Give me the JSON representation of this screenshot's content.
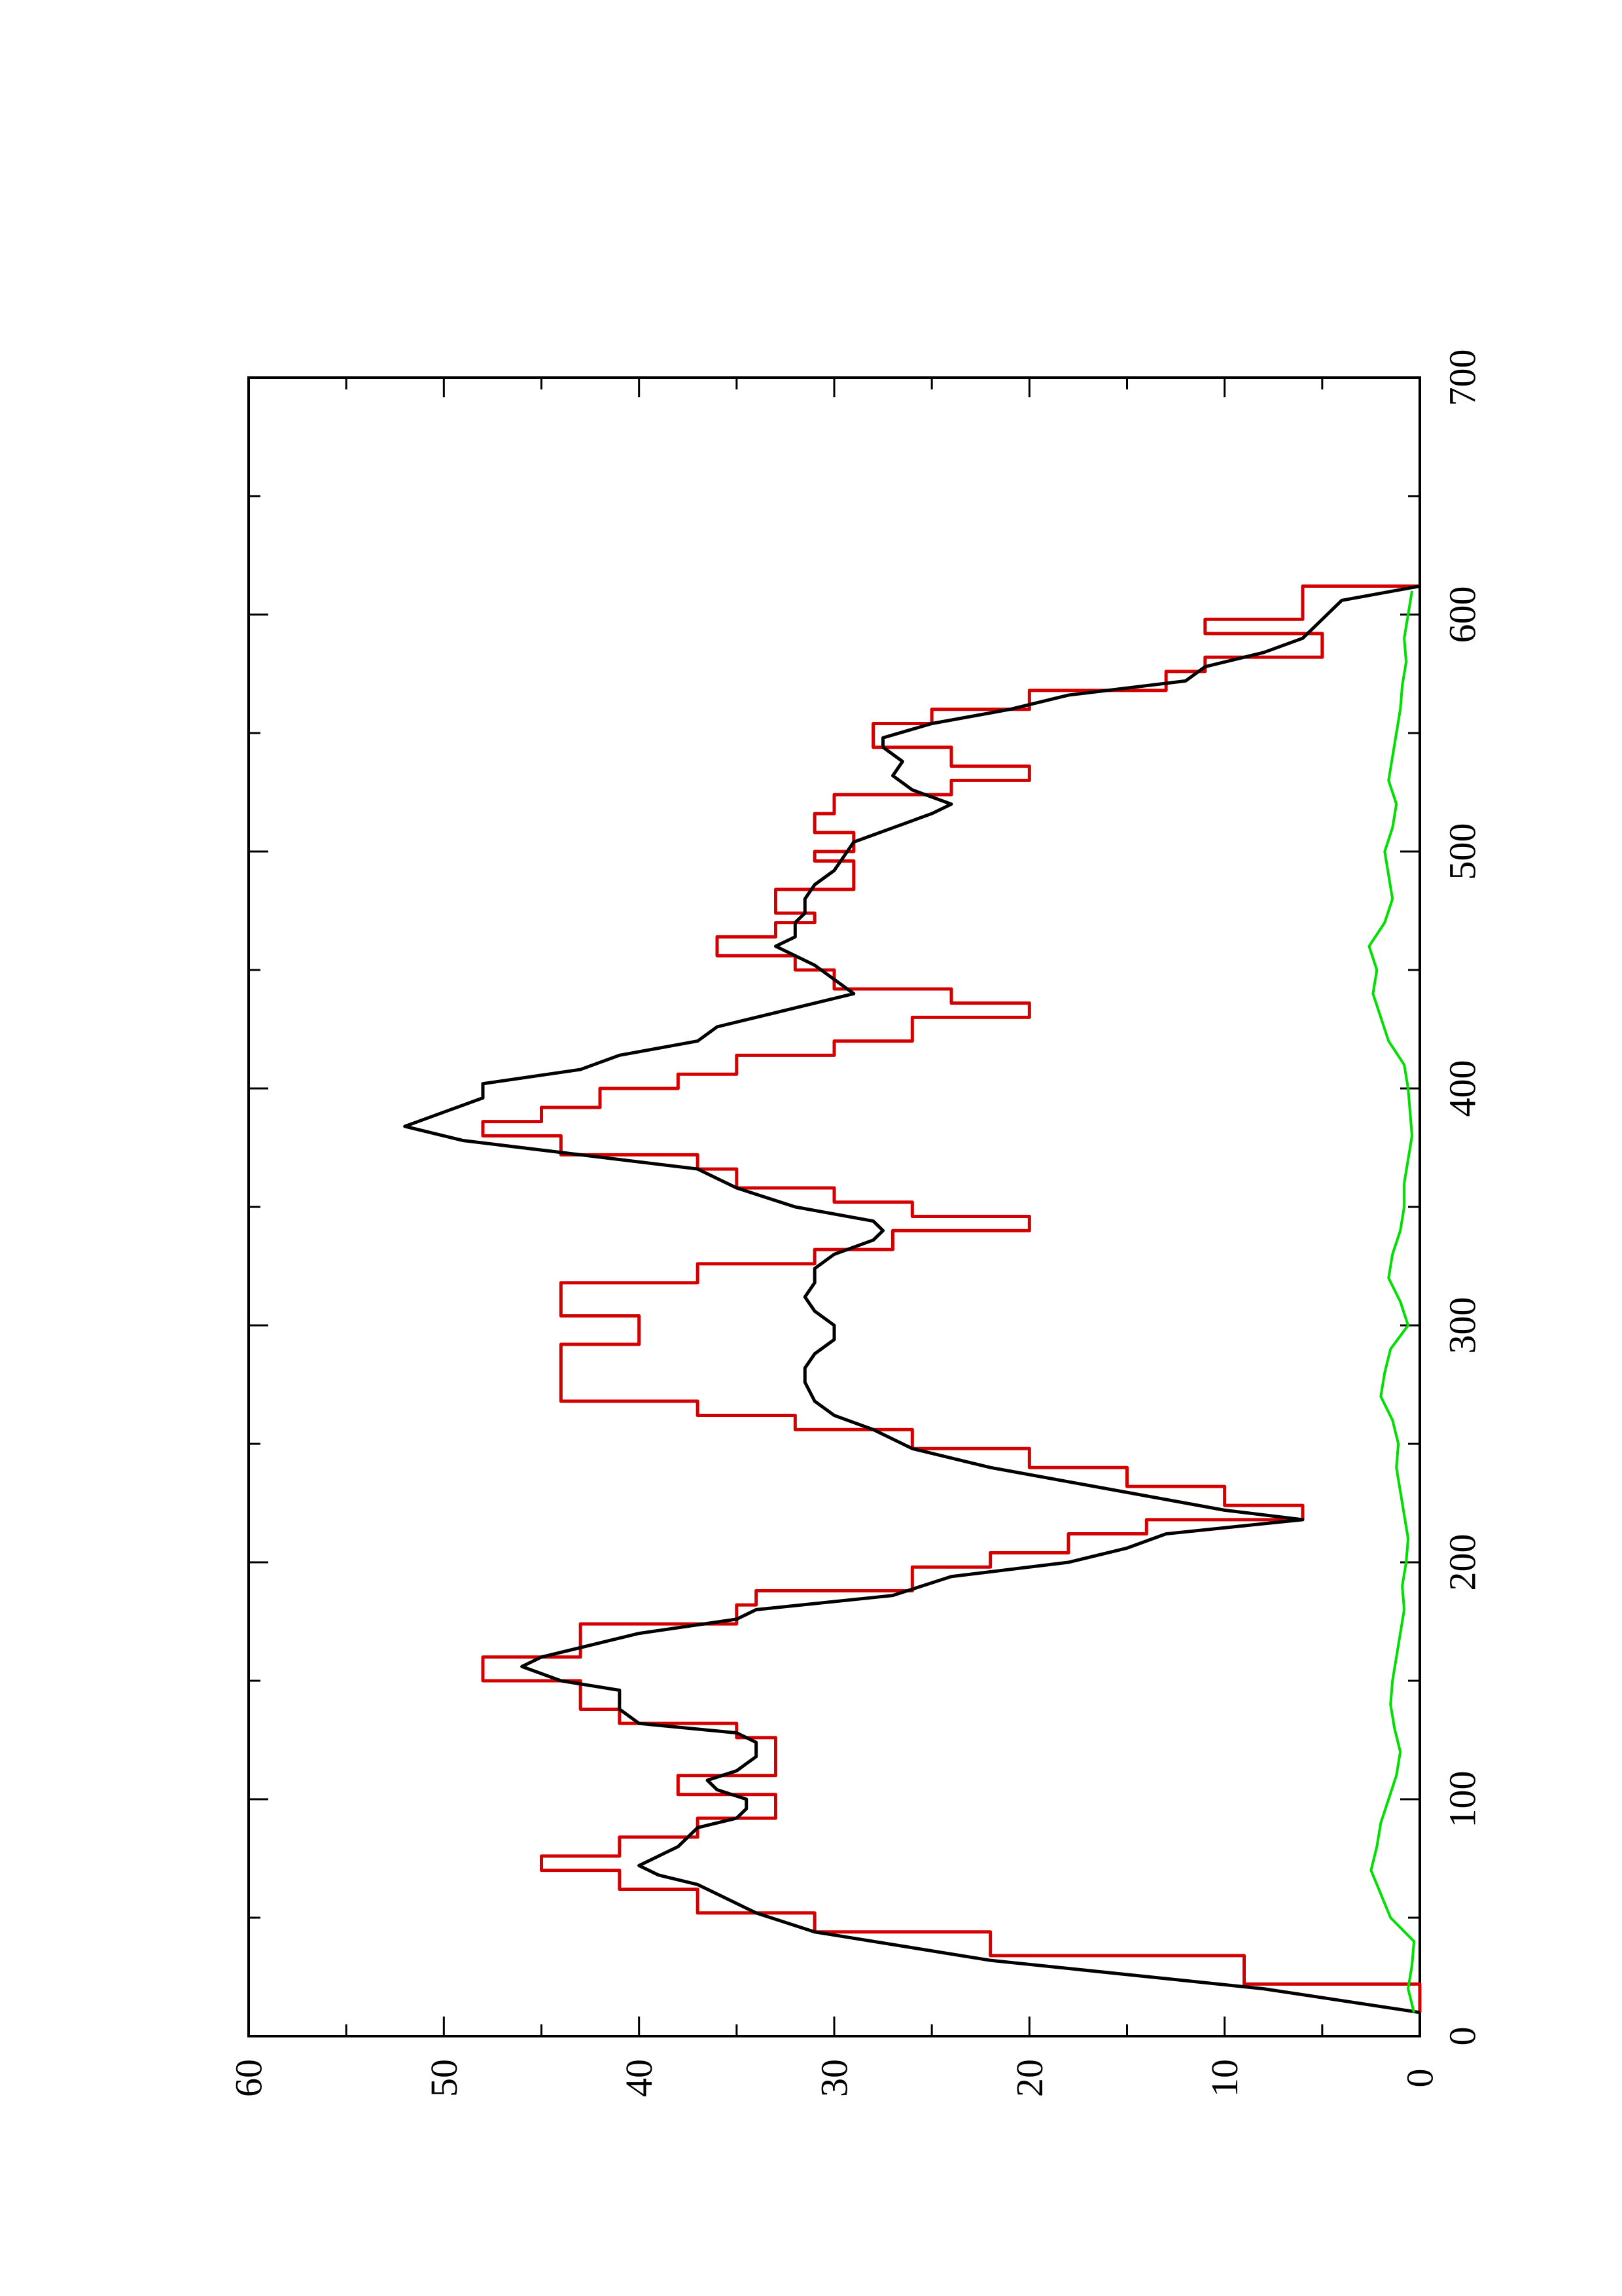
{
  "chart_data": {
    "type": "line",
    "orientation": "rotated-90-ccw",
    "title": "",
    "xlabel": "",
    "ylabel": "",
    "xlim": [
      0,
      700
    ],
    "ylim": [
      0,
      60
    ],
    "x_ticks": [
      "0",
      "100",
      "200",
      "300",
      "400",
      "500",
      "600",
      "700"
    ],
    "y_ticks": [
      "0",
      "10",
      "20",
      "30",
      "40",
      "50",
      "60"
    ],
    "grid": false,
    "legend": "none",
    "series": [
      {
        "color": "#d40000",
        "style": "step",
        "points": [
          [
            10,
            0
          ],
          [
            22,
            9
          ],
          [
            34,
            22
          ],
          [
            44,
            31
          ],
          [
            52,
            37
          ],
          [
            62,
            41
          ],
          [
            70,
            45
          ],
          [
            76,
            41
          ],
          [
            84,
            37
          ],
          [
            92,
            33
          ],
          [
            100,
            33
          ],
          [
            102,
            38
          ],
          [
            108,
            38
          ],
          [
            110,
            33
          ],
          [
            122,
            33
          ],
          [
            126,
            35
          ],
          [
            132,
            41
          ],
          [
            138,
            43
          ],
          [
            146,
            43
          ],
          [
            150,
            48
          ],
          [
            156,
            48
          ],
          [
            160,
            43
          ],
          [
            170,
            43
          ],
          [
            174,
            35
          ],
          [
            182,
            34
          ],
          [
            188,
            26
          ],
          [
            198,
            22
          ],
          [
            204,
            18
          ],
          [
            212,
            14
          ],
          [
            218,
            6
          ],
          [
            224,
            10
          ],
          [
            232,
            15
          ],
          [
            240,
            20
          ],
          [
            248,
            26
          ],
          [
            256,
            32
          ],
          [
            262,
            37
          ],
          [
            268,
            44
          ],
          [
            288,
            44
          ],
          [
            292,
            40
          ],
          [
            300,
            40
          ],
          [
            304,
            44
          ],
          [
            312,
            44
          ],
          [
            318,
            37
          ],
          [
            326,
            31
          ],
          [
            332,
            27
          ],
          [
            340,
            20
          ],
          [
            346,
            26
          ],
          [
            352,
            30
          ],
          [
            358,
            35
          ],
          [
            366,
            37
          ],
          [
            372,
            44
          ],
          [
            380,
            48
          ],
          [
            386,
            45
          ],
          [
            392,
            42
          ],
          [
            400,
            38
          ],
          [
            406,
            35
          ],
          [
            414,
            30
          ],
          [
            420,
            26
          ],
          [
            430,
            20
          ],
          [
            436,
            24
          ],
          [
            442,
            30
          ],
          [
            450,
            32
          ],
          [
            456,
            36
          ],
          [
            460,
            36
          ],
          [
            464,
            33
          ],
          [
            470,
            31
          ],
          [
            474,
            33
          ],
          [
            480,
            33
          ],
          [
            484,
            29
          ],
          [
            490,
            29
          ],
          [
            496,
            31
          ],
          [
            500,
            29
          ],
          [
            504,
            29
          ],
          [
            508,
            31
          ],
          [
            516,
            30
          ],
          [
            520,
            30
          ],
          [
            524,
            24
          ],
          [
            530,
            20
          ],
          [
            536,
            24
          ],
          [
            544,
            28
          ],
          [
            548,
            28
          ],
          [
            554,
            25
          ],
          [
            560,
            20
          ],
          [
            568,
            13
          ],
          [
            576,
            11
          ],
          [
            582,
            5
          ],
          [
            588,
            5
          ],
          [
            592,
            11
          ],
          [
            598,
            6
          ],
          [
            606,
            6
          ],
          [
            612,
            0
          ]
        ]
      },
      {
        "color": "#000000",
        "style": "line",
        "points": [
          [
            10,
            0
          ],
          [
            20,
            8
          ],
          [
            32,
            22
          ],
          [
            44,
            31
          ],
          [
            52,
            34
          ],
          [
            56,
            35
          ],
          [
            60,
            36
          ],
          [
            64,
            37
          ],
          [
            68,
            39
          ],
          [
            72,
            40
          ],
          [
            76,
            39
          ],
          [
            80,
            38
          ],
          [
            84,
            37.5
          ],
          [
            88,
            37
          ],
          [
            92,
            35
          ],
          [
            96,
            34.5
          ],
          [
            100,
            34.5
          ],
          [
            104,
            36
          ],
          [
            108,
            36.5
          ],
          [
            112,
            35
          ],
          [
            118,
            34
          ],
          [
            124,
            34
          ],
          [
            128,
            35
          ],
          [
            132,
            40
          ],
          [
            138,
            41
          ],
          [
            146,
            41
          ],
          [
            150,
            44
          ],
          [
            156,
            46
          ],
          [
            160,
            45
          ],
          [
            166,
            42
          ],
          [
            170,
            40
          ],
          [
            176,
            35
          ],
          [
            180,
            34
          ],
          [
            186,
            27
          ],
          [
            194,
            24
          ],
          [
            200,
            18
          ],
          [
            206,
            15
          ],
          [
            212,
            13
          ],
          [
            218,
            6
          ],
          [
            222,
            10
          ],
          [
            228,
            14
          ],
          [
            234,
            18
          ],
          [
            240,
            22
          ],
          [
            248,
            26
          ],
          [
            256,
            28
          ],
          [
            262,
            30
          ],
          [
            268,
            31
          ],
          [
            276,
            31.5
          ],
          [
            282,
            31.5
          ],
          [
            288,
            31
          ],
          [
            294,
            30
          ],
          [
            300,
            30
          ],
          [
            306,
            31
          ],
          [
            312,
            31.5
          ],
          [
            318,
            31
          ],
          [
            324,
            31
          ],
          [
            330,
            30
          ],
          [
            336,
            28
          ],
          [
            340,
            27.5
          ],
          [
            344,
            28
          ],
          [
            350,
            32
          ],
          [
            358,
            35
          ],
          [
            366,
            37
          ],
          [
            372,
            43
          ],
          [
            378,
            49
          ],
          [
            384,
            52
          ],
          [
            390,
            50
          ],
          [
            396,
            48
          ],
          [
            402,
            48
          ],
          [
            408,
            43
          ],
          [
            414,
            41
          ],
          [
            420,
            37
          ],
          [
            426,
            36
          ],
          [
            432,
            33
          ],
          [
            436,
            31
          ],
          [
            440,
            29
          ],
          [
            446,
            30
          ],
          [
            452,
            31
          ],
          [
            456,
            32
          ],
          [
            460,
            33
          ],
          [
            464,
            32
          ],
          [
            470,
            32
          ],
          [
            474,
            31.5
          ],
          [
            480,
            31.5
          ],
          [
            486,
            31
          ],
          [
            492,
            30
          ],
          [
            498,
            29.5
          ],
          [
            504,
            29
          ],
          [
            510,
            27
          ],
          [
            516,
            25
          ],
          [
            520,
            24
          ],
          [
            526,
            26
          ],
          [
            532,
            27
          ],
          [
            538,
            26.5
          ],
          [
            544,
            27.5
          ],
          [
            548,
            27.5
          ],
          [
            554,
            25
          ],
          [
            560,
            21
          ],
          [
            566,
            18
          ],
          [
            572,
            12
          ],
          [
            578,
            11
          ],
          [
            584,
            8
          ],
          [
            590,
            6
          ],
          [
            598,
            5
          ],
          [
            606,
            4
          ],
          [
            612,
            0
          ]
        ]
      },
      {
        "color": "#00e000",
        "style": "noise",
        "points": [
          [
            10,
            0.3
          ],
          [
            20,
            0.6
          ],
          [
            30,
            0.4
          ],
          [
            40,
            0.3
          ],
          [
            50,
            1.5
          ],
          [
            60,
            2.0
          ],
          [
            70,
            2.5
          ],
          [
            80,
            2.2
          ],
          [
            90,
            2.0
          ],
          [
            100,
            1.6
          ],
          [
            110,
            1.2
          ],
          [
            120,
            1.0
          ],
          [
            130,
            1.3
          ],
          [
            140,
            1.5
          ],
          [
            150,
            1.4
          ],
          [
            160,
            1.2
          ],
          [
            170,
            1.0
          ],
          [
            180,
            0.8
          ],
          [
            190,
            0.9
          ],
          [
            200,
            0.7
          ],
          [
            210,
            0.6
          ],
          [
            220,
            0.8
          ],
          [
            230,
            1.0
          ],
          [
            240,
            1.2
          ],
          [
            250,
            1.1
          ],
          [
            260,
            1.4
          ],
          [
            270,
            2.0
          ],
          [
            280,
            1.8
          ],
          [
            290,
            1.5
          ],
          [
            300,
            0.6
          ],
          [
            310,
            1.0
          ],
          [
            320,
            1.6
          ],
          [
            330,
            1.4
          ],
          [
            340,
            1.0
          ],
          [
            350,
            0.8
          ],
          [
            360,
            0.8
          ],
          [
            370,
            0.6
          ],
          [
            380,
            0.4
          ],
          [
            390,
            0.5
          ],
          [
            400,
            0.6
          ],
          [
            410,
            0.8
          ],
          [
            420,
            1.6
          ],
          [
            430,
            2.0
          ],
          [
            440,
            2.4
          ],
          [
            450,
            2.2
          ],
          [
            460,
            2.6
          ],
          [
            470,
            1.8
          ],
          [
            480,
            1.4
          ],
          [
            490,
            1.6
          ],
          [
            500,
            1.8
          ],
          [
            510,
            1.4
          ],
          [
            520,
            1.2
          ],
          [
            530,
            1.6
          ],
          [
            540,
            1.4
          ],
          [
            550,
            1.2
          ],
          [
            560,
            1.0
          ],
          [
            570,
            0.9
          ],
          [
            580,
            0.7
          ],
          [
            590,
            0.8
          ],
          [
            600,
            0.6
          ],
          [
            610,
            0.4
          ]
        ]
      }
    ]
  }
}
